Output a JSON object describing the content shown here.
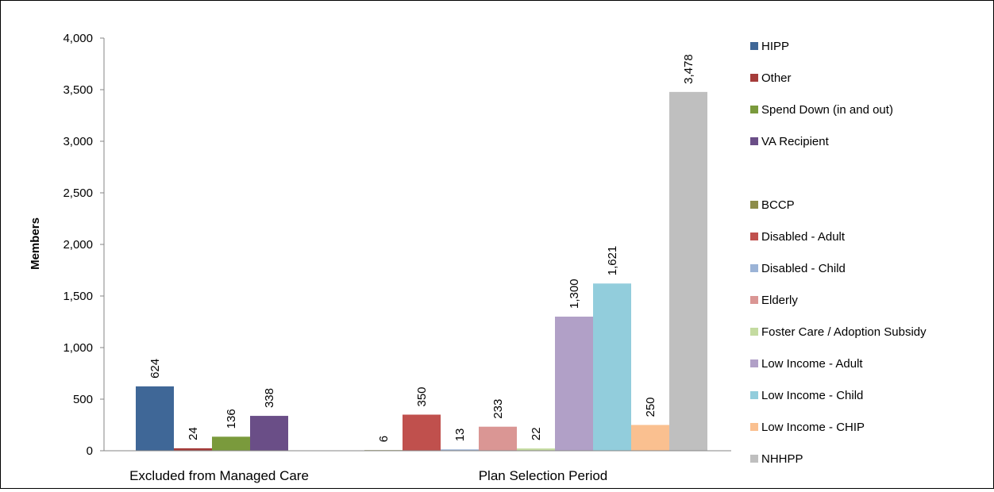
{
  "chart_data": {
    "type": "bar",
    "title": "",
    "xlabel": "",
    "ylabel": "Members",
    "ylim": [
      0,
      4000
    ],
    "yticks": [
      0,
      500,
      1000,
      1500,
      2000,
      2500,
      3000,
      3500,
      4000
    ],
    "ytick_labels": [
      "0",
      "500",
      "1,000",
      "1,500",
      "2,000",
      "2,500",
      "3,000",
      "3,500",
      "4,000"
    ],
    "grid": false,
    "legend_position": "right",
    "groups": [
      {
        "category": "Excluded from Managed Care",
        "bars": [
          {
            "series": "HIPP",
            "value": 624,
            "label": "624"
          },
          {
            "series": "Other",
            "value": 24,
            "label": "24"
          },
          {
            "series": "Spend Down (in and out)",
            "value": 136,
            "label": "136"
          },
          {
            "series": "VA Recipient",
            "value": 338,
            "label": "338"
          }
        ]
      },
      {
        "category": "Plan Selection Period",
        "bars": [
          {
            "series": "BCCP",
            "value": 6,
            "label": "6"
          },
          {
            "series": "Disabled - Adult",
            "value": 350,
            "label": "350"
          },
          {
            "series": "Disabled - Child",
            "value": 13,
            "label": "13"
          },
          {
            "series": "Elderly",
            "value": 233,
            "label": "233"
          },
          {
            "series": "Foster Care / Adoption Subsidy",
            "value": 22,
            "label": "22"
          },
          {
            "series": "Low Income - Adult",
            "value": 1300,
            "label": "1,300"
          },
          {
            "series": "Low Income - Child",
            "value": 1621,
            "label": "1,621"
          },
          {
            "series": "Low Income - CHIP",
            "value": 250,
            "label": "250"
          },
          {
            "series": "NHHPP",
            "value": 3478,
            "label": "3,478"
          }
        ]
      }
    ],
    "series": [
      {
        "name": "HIPP",
        "color": "#3F6797"
      },
      {
        "name": "Other",
        "color": "#A53C3A"
      },
      {
        "name": "Spend Down (in and out)",
        "color": "#7A9A3C"
      },
      {
        "name": "VA Recipient",
        "color": "#6A4E87"
      },
      {
        "name": "BCCP",
        "color": "#8D8D4A"
      },
      {
        "name": "Disabled - Adult",
        "color": "#C0504D"
      },
      {
        "name": "Disabled - Child",
        "color": "#9BB3D6"
      },
      {
        "name": "Elderly",
        "color": "#DA9694"
      },
      {
        "name": "Foster Care / Adoption Subsidy",
        "color": "#C4DBA0"
      },
      {
        "name": "Low Income - Adult",
        "color": "#B1A0C7"
      },
      {
        "name": "Low Income - Child",
        "color": "#92CDDC"
      },
      {
        "name": "Low Income - CHIP",
        "color": "#FAC090"
      },
      {
        "name": "NHHPP",
        "color": "#BFBFBF"
      }
    ]
  }
}
